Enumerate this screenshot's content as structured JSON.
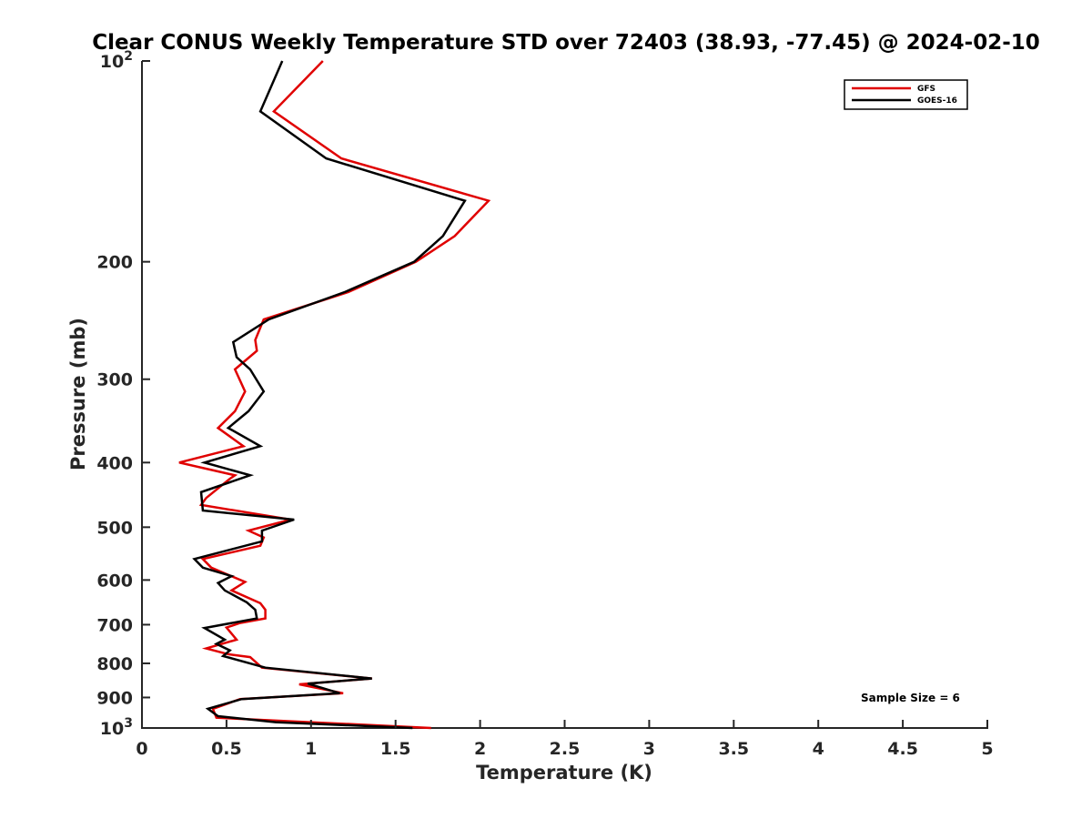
{
  "chart_data": {
    "type": "line",
    "title": "Clear CONUS Weekly Temperature STD over 72403 (38.93, -77.45) @ 2024-02-10",
    "xlabel": "Temperature (K)",
    "ylabel": "Pressure (mb)",
    "xlim": [
      0,
      5
    ],
    "ylim": [
      1000,
      100
    ],
    "y_scale": "log",
    "grid": false,
    "legend_position": "top-right",
    "x_ticks": [
      0,
      0.5,
      1,
      1.5,
      2,
      2.5,
      3,
      3.5,
      4,
      4.5,
      5
    ],
    "x_tick_labels": [
      "0",
      "0.5",
      "1",
      "1.5",
      "2",
      "2.5",
      "3",
      "3.5",
      "4",
      "4.5",
      "5"
    ],
    "y_ticks": [
      100,
      200,
      300,
      400,
      500,
      600,
      700,
      800,
      900,
      1000
    ],
    "y_tick_labels": [
      {
        "base": "10",
        "exp": "2"
      },
      {
        "base": "200",
        "exp": ""
      },
      {
        "base": "300",
        "exp": ""
      },
      {
        "base": "400",
        "exp": ""
      },
      {
        "base": "500",
        "exp": ""
      },
      {
        "base": "600",
        "exp": ""
      },
      {
        "base": "700",
        "exp": ""
      },
      {
        "base": "800",
        "exp": ""
      },
      {
        "base": "900",
        "exp": ""
      },
      {
        "base": "10",
        "exp": "3"
      }
    ],
    "series": [
      {
        "name": "GFS",
        "color": "#e00000",
        "points": [
          [
            1.07,
            100
          ],
          [
            0.78,
            119
          ],
          [
            1.18,
            140
          ],
          [
            2.05,
            162
          ],
          [
            1.85,
            183
          ],
          [
            1.62,
            200
          ],
          [
            1.22,
            222
          ],
          [
            0.72,
            244
          ],
          [
            0.67,
            262
          ],
          [
            0.68,
            272
          ],
          [
            0.55,
            290
          ],
          [
            0.61,
            313
          ],
          [
            0.55,
            335
          ],
          [
            0.45,
            355
          ],
          [
            0.6,
            378
          ],
          [
            0.22,
            400
          ],
          [
            0.55,
            418
          ],
          [
            0.52,
            423
          ],
          [
            0.38,
            452
          ],
          [
            0.35,
            463
          ],
          [
            0.88,
            487
          ],
          [
            0.63,
            506
          ],
          [
            0.72,
            518
          ],
          [
            0.7,
            533
          ],
          [
            0.36,
            558
          ],
          [
            0.41,
            575
          ],
          [
            0.61,
            604
          ],
          [
            0.53,
            622
          ],
          [
            0.7,
            650
          ],
          [
            0.73,
            665
          ],
          [
            0.73,
            685
          ],
          [
            0.58,
            696
          ],
          [
            0.5,
            707
          ],
          [
            0.56,
            737
          ],
          [
            0.38,
            760
          ],
          [
            0.51,
            775
          ],
          [
            0.64,
            783
          ],
          [
            0.71,
            812
          ],
          [
            1.36,
            843
          ],
          [
            0.93,
            860
          ],
          [
            1.19,
            887
          ],
          [
            0.58,
            905
          ],
          [
            0.42,
            936
          ],
          [
            0.44,
            965
          ],
          [
            1.71,
            1000
          ]
        ]
      },
      {
        "name": "GOES-16",
        "color": "#000000",
        "points": [
          [
            0.83,
            100
          ],
          [
            0.7,
            119
          ],
          [
            1.09,
            140
          ],
          [
            1.91,
            162
          ],
          [
            1.78,
            183
          ],
          [
            1.61,
            200
          ],
          [
            1.2,
            222
          ],
          [
            0.75,
            244
          ],
          [
            0.54,
            264
          ],
          [
            0.56,
            278
          ],
          [
            0.64,
            290
          ],
          [
            0.72,
            313
          ],
          [
            0.63,
            335
          ],
          [
            0.51,
            355
          ],
          [
            0.7,
            378
          ],
          [
            0.37,
            400
          ],
          [
            0.64,
            418
          ],
          [
            0.35,
            443
          ],
          [
            0.36,
            472
          ],
          [
            0.9,
            487
          ],
          [
            0.71,
            506
          ],
          [
            0.71,
            525
          ],
          [
            0.31,
            558
          ],
          [
            0.36,
            575
          ],
          [
            0.53,
            592
          ],
          [
            0.45,
            606
          ],
          [
            0.49,
            622
          ],
          [
            0.62,
            648
          ],
          [
            0.67,
            665
          ],
          [
            0.68,
            685
          ],
          [
            0.37,
            708
          ],
          [
            0.49,
            737
          ],
          [
            0.44,
            748
          ],
          [
            0.52,
            765
          ],
          [
            0.48,
            780
          ],
          [
            0.73,
            812
          ],
          [
            1.36,
            843
          ],
          [
            0.98,
            858
          ],
          [
            1.17,
            887
          ],
          [
            0.59,
            905
          ],
          [
            0.39,
            936
          ],
          [
            0.45,
            960
          ],
          [
            0.79,
            980
          ],
          [
            1.6,
            1000
          ]
        ]
      }
    ],
    "annotation": "Sample Size = 6"
  }
}
